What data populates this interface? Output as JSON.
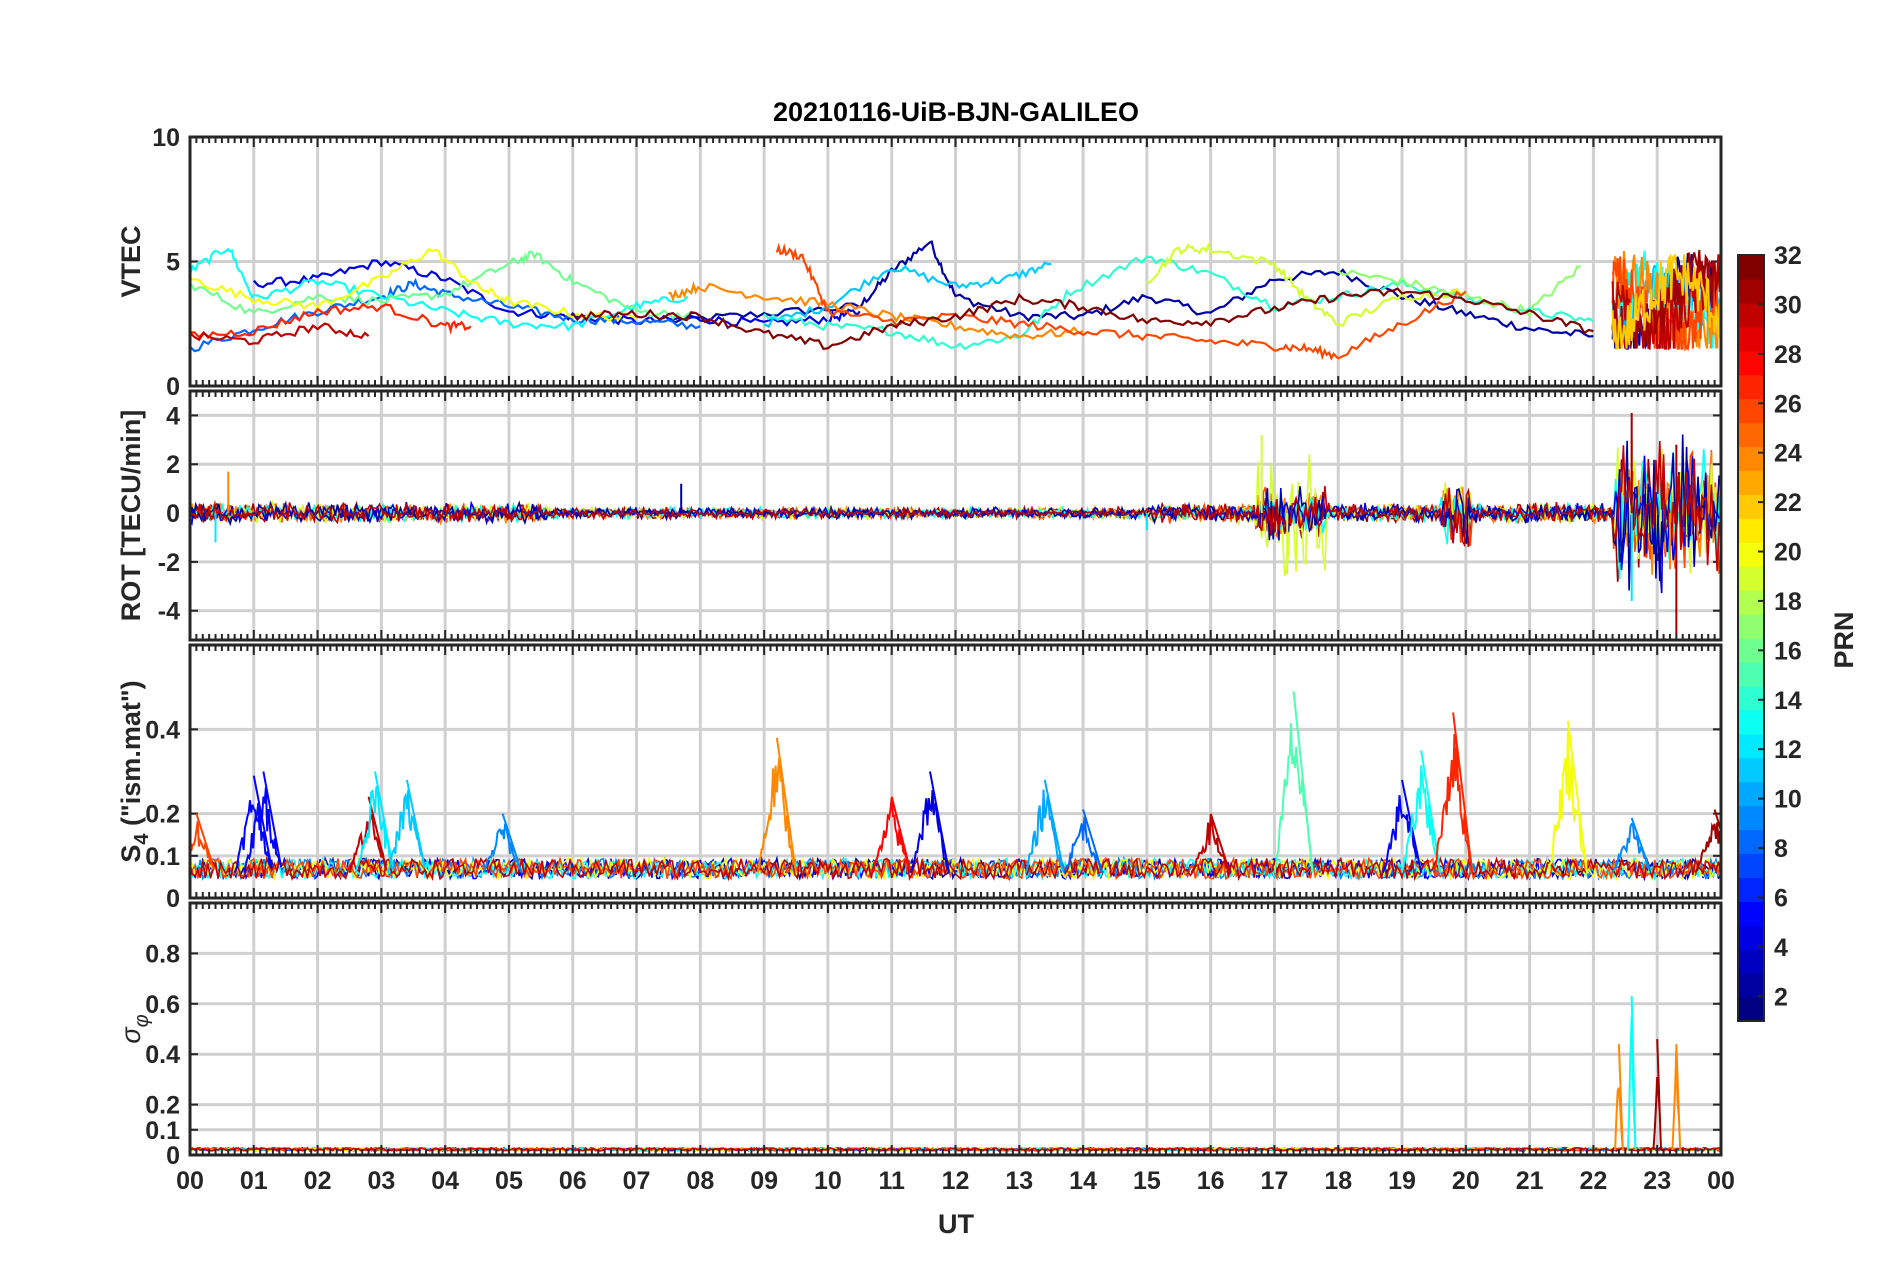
{
  "chart_data": {
    "type": "line",
    "title": "20210116-UiB-BJN-GALILEO",
    "xlabel": "UT",
    "x_ticks": [
      "00",
      "01",
      "02",
      "03",
      "04",
      "05",
      "06",
      "07",
      "08",
      "09",
      "10",
      "11",
      "12",
      "13",
      "14",
      "15",
      "16",
      "17",
      "18",
      "19",
      "20",
      "21",
      "22",
      "23",
      "00"
    ],
    "xlim_hours": [
      0,
      24
    ],
    "grid": true,
    "colorbar": {
      "label": "PRN",
      "range": [
        1,
        32
      ],
      "ticks": [
        "2",
        "4",
        "6",
        "8",
        "10",
        "12",
        "14",
        "16",
        "18",
        "20",
        "22",
        "24",
        "26",
        "28",
        "30",
        "32"
      ],
      "colormap": "jet",
      "placement": "right"
    },
    "panels": [
      {
        "ylabel": "VTEC",
        "ylim": [
          0,
          10
        ],
        "y_ticks": [
          "0",
          "5",
          "10"
        ],
        "series": [
          {
            "prn": 2,
            "x": [
              7.5,
              9,
              10.5,
              11,
              11.6,
              12,
              13,
              14,
              15,
              16,
              17,
              18,
              19,
              20,
              21,
              22
            ],
            "y": [
              2.6,
              2.9,
              3.2,
              4.6,
              5.8,
              3.6,
              2.8,
              2.8,
              3.6,
              2.9,
              4.3,
              4.6,
              3.6,
              2.9,
              2.3,
              2.0
            ]
          },
          {
            "prn": 4,
            "x": [
              1.0,
              2,
              3,
              4,
              5,
              6,
              7,
              8,
              9,
              10,
              10.5
            ],
            "y": [
              4.1,
              4.3,
              5.0,
              4.3,
              3.0,
              2.8,
              2.6,
              2.7,
              2.5,
              2.7,
              3.0
            ]
          },
          {
            "prn": 8,
            "x": [
              0,
              1,
              2,
              3,
              3.5,
              4,
              5,
              6,
              7,
              8
            ],
            "y": [
              1.5,
              2.3,
              3.0,
              3.6,
              4.1,
              3.7,
              3.2,
              2.7,
              2.6,
              2.4
            ]
          },
          {
            "prn": 11,
            "x": [
              9,
              10,
              11,
              12,
              12.8,
              13.5
            ],
            "y": [
              2.5,
              3.2,
              4.8,
              4.0,
              4.3,
              4.9
            ]
          },
          {
            "prn": 13,
            "x": [
              0,
              0.6,
              1,
              2,
              3,
              4,
              5,
              6,
              7,
              7.8
            ],
            "y": [
              4.6,
              5.6,
              3.5,
              4.2,
              3.6,
              3.0,
              2.5,
              2.4,
              3.2,
              3.6
            ]
          },
          {
            "prn": 14,
            "x": [
              9,
              10,
              11,
              12,
              13,
              13.8,
              15,
              16,
              17,
              18,
              19,
              20,
              21,
              22
            ],
            "y": [
              2.8,
              2.4,
              2.2,
              1.6,
              2.0,
              3.8,
              5.2,
              4.5,
              3.2,
              3.6,
              4.1,
              3.5,
              3.0,
              2.6
            ]
          },
          {
            "prn": 16,
            "x": [
              0,
              1,
              2,
              3,
              4,
              5,
              5.4,
              6,
              7,
              8
            ],
            "y": [
              4.1,
              2.9,
              3.6,
              3.4,
              3.7,
              4.9,
              5.3,
              4.2,
              3.0,
              2.8
            ]
          },
          {
            "prn": 17,
            "x": [
              18,
              19,
              20,
              21,
              21.8
            ],
            "y": [
              4.6,
              4.2,
              3.6,
              3.0,
              4.8
            ]
          },
          {
            "prn": 20,
            "x": [
              0,
              1,
              2,
              3,
              3.8,
              4.5,
              5,
              6,
              7
            ],
            "y": [
              4.3,
              3.5,
              3.2,
              4.3,
              5.5,
              4.0,
              3.4,
              2.9,
              2.7
            ],
            "extra": "15–18h segment"
          },
          {
            "prn": 19,
            "x": [
              15,
              15.5,
              16,
              17,
              17.5,
              18,
              19,
              20
            ],
            "y": [
              4.2,
              5.5,
              5.5,
              4.9,
              3.5,
              2.5,
              3.6,
              3.8
            ]
          },
          {
            "prn": 24,
            "x": [
              7.5,
              8,
              9,
              10,
              11,
              12,
              13,
              14
            ],
            "y": [
              3.6,
              4.0,
              3.6,
              3.3,
              2.8,
              2.4,
              2.0,
              2.2
            ]
          },
          {
            "prn": 26,
            "x": [
              9.2,
              9.6,
              10,
              11,
              12,
              13,
              14,
              15,
              16,
              17,
              17.5,
              18,
              19,
              20
            ],
            "y": [
              5.5,
              5.2,
              3.0,
              2.6,
              2.8,
              2.5,
              2.2,
              2.0,
              1.8,
              1.6,
              1.5,
              1.2,
              2.5,
              3.8
            ]
          },
          {
            "prn": 27,
            "x": [
              0,
              1,
              2,
              3,
              4,
              4.4
            ],
            "y": [
              2.0,
              2.2,
              3.0,
              3.2,
              2.4,
              2.4
            ]
          },
          {
            "prn": 30,
            "x": [
              0,
              1,
              2,
              2.8
            ],
            "y": [
              2.0,
              1.8,
              2.4,
              2.0
            ]
          },
          {
            "prn": 32,
            "x": [
              6,
              7,
              8,
              9,
              10,
              11,
              12,
              13,
              14,
              15,
              16,
              17,
              18,
              19,
              20,
              21,
              22
            ],
            "y": [
              2.8,
              2.9,
              2.8,
              2.1,
              1.6,
              2.4,
              2.8,
              3.5,
              3.2,
              2.6,
              2.6,
              3.1,
              3.6,
              3.8,
              3.5,
              2.9,
              2.2
            ]
          }
        ]
      },
      {
        "ylabel": "ROT [TECU/min]",
        "ylim": [
          -5.2,
          5
        ],
        "y_ticks": [
          "-4",
          "-2",
          "0",
          "2",
          "4"
        ],
        "series_note": "noise around 0 with bursts ~17h (PRN 19, ±2.5), ~20h, and 22.3–24h (up to ±4, min ≈ -5)",
        "series": [
          {
            "prn": 2,
            "x": [
              0,
              7.7,
              7.7,
              24
            ],
            "y": [
              0.1,
              0.2,
              1.2,
              0
            ]
          },
          {
            "prn": 12,
            "x": [
              0.4,
              15,
              22.6
            ],
            "y": [
              -1.2,
              -0.7,
              -3.6
            ]
          },
          {
            "prn": 19,
            "x": [
              16.8,
              17.2
            ],
            "y": [
              3.2,
              -2.5
            ]
          },
          {
            "prn": 24,
            "x": [
              0.6,
              22.6,
              23.2
            ],
            "y": [
              1.7,
              3.0,
              -2.3
            ]
          },
          {
            "prn": 31,
            "x": [
              22.6,
              23.3,
              23.3
            ],
            "y": [
              4.1,
              2.8,
              -5.0
            ]
          }
        ]
      },
      {
        "ylabel": "S4 (\"ism.mat\")",
        "ylabel_main": "S",
        "ylabel_sub": "4",
        "ylabel_rest": " (\"ism.mat\")",
        "ylim": [
          0,
          0.6
        ],
        "y_ticks": [
          "0",
          "0.1",
          "0.2",
          "0.4"
        ],
        "baseline": 0.06,
        "spikes": [
          {
            "prn": 26,
            "x": 0.1,
            "y": 0.2
          },
          {
            "prn": 5,
            "x": 1.0,
            "y": 0.29
          },
          {
            "prn": 5,
            "x": 1.15,
            "y": 0.3
          },
          {
            "prn": 30,
            "x": 2.8,
            "y": 0.24
          },
          {
            "prn": 12,
            "x": 2.9,
            "y": 0.3
          },
          {
            "prn": 11,
            "x": 3.4,
            "y": 0.28
          },
          {
            "prn": 9,
            "x": 4.9,
            "y": 0.2
          },
          {
            "prn": 24,
            "x": 9.2,
            "y": 0.38
          },
          {
            "prn": 28,
            "x": 11.0,
            "y": 0.24
          },
          {
            "prn": 4,
            "x": 11.6,
            "y": 0.3
          },
          {
            "prn": 10,
            "x": 13.4,
            "y": 0.28
          },
          {
            "prn": 8,
            "x": 14.0,
            "y": 0.21
          },
          {
            "prn": 30,
            "x": 16.0,
            "y": 0.2
          },
          {
            "prn": 15,
            "x": 17.3,
            "y": 0.49
          },
          {
            "prn": 5,
            "x": 19.0,
            "y": 0.28
          },
          {
            "prn": 13,
            "x": 19.3,
            "y": 0.35
          },
          {
            "prn": 27,
            "x": 19.8,
            "y": 0.44
          },
          {
            "prn": 20,
            "x": 21.6,
            "y": 0.42
          },
          {
            "prn": 9,
            "x": 22.6,
            "y": 0.19
          },
          {
            "prn": 31,
            "x": 23.9,
            "y": 0.21
          }
        ]
      },
      {
        "ylabel": "σ φ",
        "ylabel_main": "σ",
        "ylabel_sub": "φ",
        "ylim": [
          0,
          1
        ],
        "y_ticks": [
          "0",
          "0.1",
          "0.2",
          "0.4",
          "0.6",
          "0.8"
        ],
        "baseline": 0.02,
        "spikes": [
          {
            "prn": 24,
            "x": 22.4,
            "y": 0.44
          },
          {
            "prn": 13,
            "x": 22.6,
            "y": 0.63
          },
          {
            "prn": 31,
            "x": 23.0,
            "y": 0.46
          },
          {
            "prn": 24,
            "x": 23.3,
            "y": 0.44
          }
        ]
      }
    ]
  }
}
